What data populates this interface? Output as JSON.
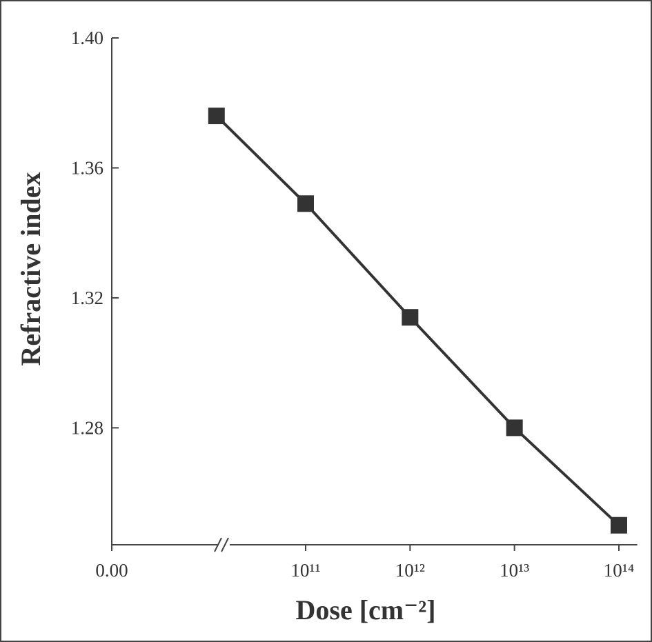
{
  "chart_data": {
    "type": "line",
    "x_label": "Dose [cm⁻²]",
    "y_label": "Refractive index",
    "x": [
      14000000000,
      100000000000,
      1000000000000,
      10000000000000,
      100000000000000
    ],
    "series": [
      {
        "color": "#333333",
        "values": [
          1.376,
          1.349,
          1.314,
          1.28,
          1.25
        ]
      }
    ],
    "x_scale": "log",
    "x_break": true,
    "xlim": [
      0,
      150000000000000
    ],
    "xticks": [
      {
        "value": 0,
        "label": "0.00"
      },
      {
        "value": 100000000000,
        "label": "10¹¹"
      },
      {
        "value": 1000000000000,
        "label": "10¹²"
      },
      {
        "value": 10000000000000,
        "label": "10¹³"
      },
      {
        "value": 100000000000000,
        "label": "10¹⁴"
      }
    ],
    "ylim": [
      1.244,
      1.4
    ],
    "yticks": [
      {
        "value": 1.4,
        "label": "1.40"
      },
      {
        "value": 1.36,
        "label": "1.36"
      },
      {
        "value": 1.32,
        "label": "1.32"
      },
      {
        "value": 1.28,
        "label": "1.28"
      }
    ],
    "grid": false
  }
}
